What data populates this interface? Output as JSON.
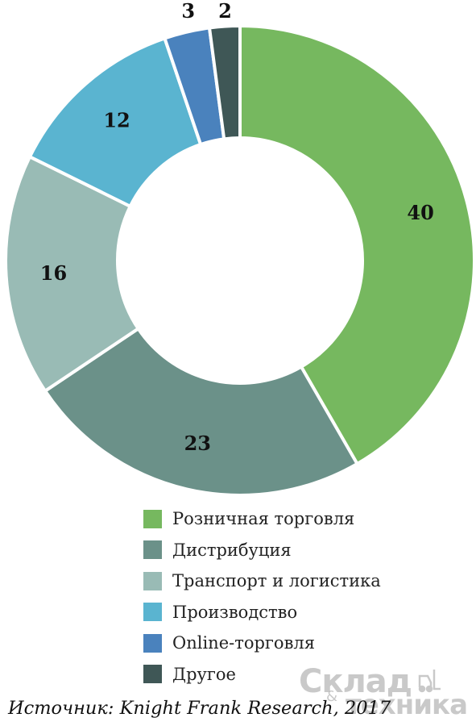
{
  "chart_data": {
    "type": "pie",
    "style": "donut",
    "categories": [
      "Розничная торговля",
      "Дистрибуция",
      "Транспорт и логистика",
      "Производство",
      "Online-торговля",
      "Другое"
    ],
    "values": [
      40,
      23,
      16,
      12,
      3,
      2
    ],
    "colors": [
      "#76b85f",
      "#6b9189",
      "#99bbb5",
      "#5ab4d0",
      "#4a82bd",
      "#3f5756"
    ],
    "data_labels": [
      "40",
      "23",
      "16",
      "12",
      "3",
      "2"
    ],
    "legend_position": "bottom"
  },
  "legend": {
    "items": [
      {
        "label": "Розничная торговля",
        "color": "#76b85f"
      },
      {
        "label": "Дистрибуция",
        "color": "#6b9189"
      },
      {
        "label": "Транспорт и логистика",
        "color": "#99bbb5"
      },
      {
        "label": "Производство",
        "color": "#5ab4d0"
      },
      {
        "label": "Online-торговля",
        "color": "#4a82bd"
      },
      {
        "label": "Другое",
        "color": "#3f5756"
      }
    ]
  },
  "source": "Источник: Knight Frank Research, 2017",
  "watermark": {
    "line1": "Склад",
    "amp": "&",
    "line2": "техника",
    "icon": "forklift-icon"
  }
}
